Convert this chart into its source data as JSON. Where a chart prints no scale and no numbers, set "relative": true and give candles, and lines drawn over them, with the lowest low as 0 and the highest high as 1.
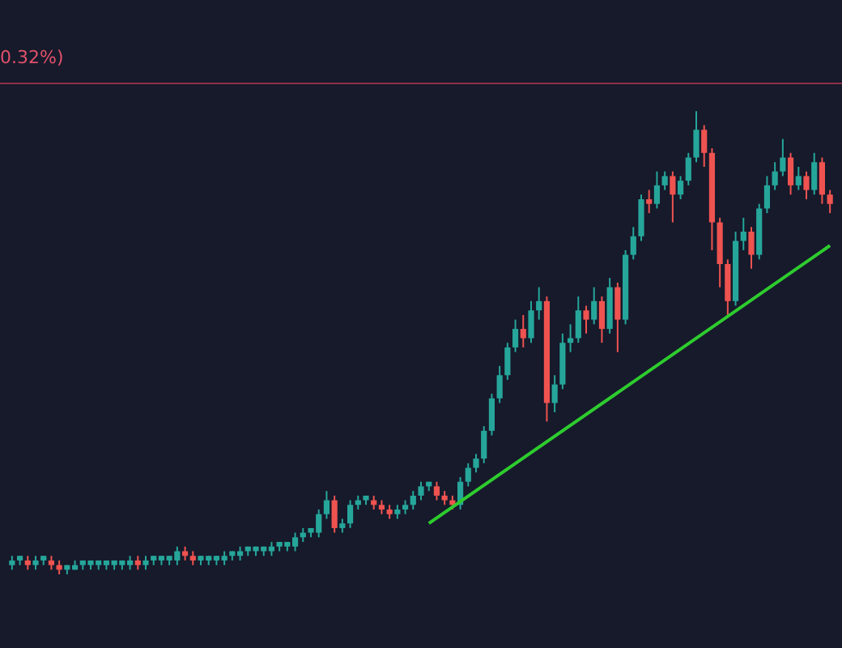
{
  "chart_data": {
    "type": "candlestick",
    "relative": true,
    "categories": [
      null,
      null,
      null,
      null,
      null,
      null,
      null,
      null,
      null,
      null,
      null,
      null,
      null,
      null,
      null,
      null,
      null,
      null,
      null,
      null,
      null,
      null,
      null,
      null,
      null,
      null,
      null,
      null,
      null,
      null,
      null,
      null,
      null,
      null,
      null,
      null,
      null,
      null,
      null,
      null,
      null,
      null,
      null,
      null,
      null,
      null,
      null,
      null,
      null,
      null,
      null,
      null,
      null,
      null,
      null,
      null,
      null,
      null,
      null,
      null,
      null,
      null,
      null,
      null,
      null,
      null,
      null,
      null,
      null,
      null,
      null,
      null,
      null,
      null,
      null,
      null,
      null,
      null,
      null,
      null,
      null,
      null,
      null,
      null,
      null,
      null,
      null,
      null,
      null,
      null,
      null,
      null,
      null,
      null,
      null,
      null,
      null,
      null,
      null,
      null,
      null,
      null,
      null,
      null,
      null
    ],
    "ohlc": [
      [
        0.02,
        0.04,
        0.01,
        0.03
      ],
      [
        0.03,
        0.04,
        0.02,
        0.04
      ],
      [
        0.03,
        0.04,
        0.01,
        0.02
      ],
      [
        0.02,
        0.04,
        0.01,
        0.03
      ],
      [
        0.03,
        0.04,
        0.02,
        0.04
      ],
      [
        0.03,
        0.04,
        0.01,
        0.02
      ],
      [
        0.02,
        0.03,
        0,
        0.01
      ],
      [
        0.01,
        0.02,
        0,
        0.02
      ],
      [
        0.01,
        0.03,
        0.01,
        0.02
      ],
      [
        0.02,
        0.03,
        0.01,
        0.03
      ],
      [
        0.02,
        0.03,
        0.01,
        0.03
      ],
      [
        0.02,
        0.03,
        0.01,
        0.03
      ],
      [
        0.02,
        0.03,
        0.01,
        0.03
      ],
      [
        0.02,
        0.03,
        0.01,
        0.03
      ],
      [
        0.02,
        0.03,
        0.01,
        0.03
      ],
      [
        0.02,
        0.04,
        0.01,
        0.03
      ],
      [
        0.03,
        0.04,
        0.01,
        0.02
      ],
      [
        0.02,
        0.04,
        0.01,
        0.03
      ],
      [
        0.03,
        0.04,
        0.02,
        0.04
      ],
      [
        0.03,
        0.04,
        0.02,
        0.04
      ],
      [
        0.03,
        0.04,
        0.02,
        0.04
      ],
      [
        0.03,
        0.06,
        0.02,
        0.05
      ],
      [
        0.05,
        0.06,
        0.03,
        0.04
      ],
      [
        0.04,
        0.05,
        0.02,
        0.03
      ],
      [
        0.03,
        0.04,
        0.02,
        0.04
      ],
      [
        0.03,
        0.04,
        0.02,
        0.04
      ],
      [
        0.03,
        0.04,
        0.02,
        0.04
      ],
      [
        0.03,
        0.05,
        0.02,
        0.04
      ],
      [
        0.04,
        0.05,
        0.03,
        0.05
      ],
      [
        0.04,
        0.06,
        0.03,
        0.05
      ],
      [
        0.05,
        0.06,
        0.04,
        0.06
      ],
      [
        0.05,
        0.06,
        0.04,
        0.06
      ],
      [
        0.05,
        0.06,
        0.04,
        0.06
      ],
      [
        0.05,
        0.07,
        0.04,
        0.06
      ],
      [
        0.06,
        0.07,
        0.05,
        0.07
      ],
      [
        0.06,
        0.07,
        0.05,
        0.07
      ],
      [
        0.06,
        0.09,
        0.05,
        0.08
      ],
      [
        0.08,
        0.1,
        0.07,
        0.09
      ],
      [
        0.09,
        0.1,
        0.08,
        0.1
      ],
      [
        0.09,
        0.14,
        0.08,
        0.13
      ],
      [
        0.13,
        0.18,
        0.12,
        0.16
      ],
      [
        0.16,
        0.17,
        0.09,
        0.1
      ],
      [
        0.1,
        0.12,
        0.09,
        0.11
      ],
      [
        0.11,
        0.16,
        0.1,
        0.15
      ],
      [
        0.15,
        0.17,
        0.14,
        0.16
      ],
      [
        0.16,
        0.17,
        0.15,
        0.17
      ],
      [
        0.16,
        0.17,
        0.14,
        0.15
      ],
      [
        0.15,
        0.16,
        0.13,
        0.14
      ],
      [
        0.14,
        0.15,
        0.12,
        0.13
      ],
      [
        0.13,
        0.15,
        0.12,
        0.14
      ],
      [
        0.14,
        0.16,
        0.13,
        0.15
      ],
      [
        0.15,
        0.18,
        0.14,
        0.17
      ],
      [
        0.17,
        0.2,
        0.16,
        0.19
      ],
      [
        0.19,
        0.2,
        0.18,
        0.2
      ],
      [
        0.19,
        0.2,
        0.16,
        0.17
      ],
      [
        0.17,
        0.18,
        0.15,
        0.16
      ],
      [
        0.16,
        0.17,
        0.14,
        0.15
      ],
      [
        0.15,
        0.21,
        0.14,
        0.2
      ],
      [
        0.2,
        0.24,
        0.19,
        0.23
      ],
      [
        0.23,
        0.26,
        0.22,
        0.25
      ],
      [
        0.25,
        0.32,
        0.24,
        0.31
      ],
      [
        0.31,
        0.39,
        0.3,
        0.38
      ],
      [
        0.38,
        0.45,
        0.37,
        0.43
      ],
      [
        0.43,
        0.5,
        0.42,
        0.49
      ],
      [
        0.49,
        0.55,
        0.48,
        0.53
      ],
      [
        0.53,
        0.56,
        0.49,
        0.51
      ],
      [
        0.51,
        0.59,
        0.5,
        0.57
      ],
      [
        0.57,
        0.62,
        0.55,
        0.59
      ],
      [
        0.59,
        0.6,
        0.33,
        0.37
      ],
      [
        0.37,
        0.43,
        0.35,
        0.41
      ],
      [
        0.41,
        0.52,
        0.4,
        0.5
      ],
      [
        0.5,
        0.54,
        0.48,
        0.51
      ],
      [
        0.51,
        0.6,
        0.5,
        0.57
      ],
      [
        0.57,
        0.58,
        0.52,
        0.55
      ],
      [
        0.55,
        0.62,
        0.54,
        0.59
      ],
      [
        0.59,
        0.6,
        0.5,
        0.53
      ],
      [
        0.53,
        0.64,
        0.52,
        0.62
      ],
      [
        0.62,
        0.63,
        0.48,
        0.55
      ],
      [
        0.55,
        0.7,
        0.54,
        0.69
      ],
      [
        0.69,
        0.75,
        0.68,
        0.73
      ],
      [
        0.73,
        0.82,
        0.72,
        0.81
      ],
      [
        0.81,
        0.83,
        0.78,
        0.8
      ],
      [
        0.8,
        0.87,
        0.79,
        0.84
      ],
      [
        0.84,
        0.87,
        0.83,
        0.86
      ],
      [
        0.86,
        0.87,
        0.76,
        0.82
      ],
      [
        0.82,
        0.86,
        0.81,
        0.85
      ],
      [
        0.85,
        0.91,
        0.84,
        0.9
      ],
      [
        0.9,
        1.0,
        0.89,
        0.96
      ],
      [
        0.96,
        0.97,
        0.88,
        0.91
      ],
      [
        0.91,
        0.92,
        0.7,
        0.76
      ],
      [
        0.76,
        0.77,
        0.62,
        0.67
      ],
      [
        0.67,
        0.68,
        0.56,
        0.59
      ],
      [
        0.59,
        0.74,
        0.58,
        0.72
      ],
      [
        0.72,
        0.77,
        0.7,
        0.74
      ],
      [
        0.74,
        0.75,
        0.66,
        0.69
      ],
      [
        0.69,
        0.8,
        0.68,
        0.79
      ],
      [
        0.79,
        0.86,
        0.78,
        0.84
      ],
      [
        0.84,
        0.89,
        0.83,
        0.87
      ],
      [
        0.87,
        0.94,
        0.86,
        0.9
      ],
      [
        0.9,
        0.91,
        0.82,
        0.84
      ],
      [
        0.84,
        0.88,
        0.83,
        0.86
      ],
      [
        0.86,
        0.87,
        0.81,
        0.83
      ],
      [
        0.83,
        0.91,
        0.82,
        0.89
      ],
      [
        0.89,
        0.9,
        0.8,
        0.82
      ],
      [
        0.82,
        0.83,
        0.78,
        0.8
      ]
    ],
    "colors": [
      "#26a69a",
      "#26a69a",
      "#ef5350",
      "#26a69a",
      "#26a69a",
      "#ef5350",
      "#ef5350",
      "#26a69a",
      "#26a69a",
      "#26a69a",
      "#26a69a",
      "#26a69a",
      "#26a69a",
      "#26a69a",
      "#26a69a",
      "#26a69a",
      "#ef5350",
      "#26a69a",
      "#26a69a",
      "#26a69a",
      "#26a69a",
      "#26a69a",
      "#ef5350",
      "#ef5350",
      "#26a69a",
      "#26a69a",
      "#26a69a",
      "#26a69a",
      "#26a69a",
      "#26a69a",
      "#26a69a",
      "#26a69a",
      "#26a69a",
      "#26a69a",
      "#26a69a",
      "#26a69a",
      "#26a69a",
      "#26a69a",
      "#26a69a",
      "#26a69a",
      "#26a69a",
      "#ef5350",
      "#26a69a",
      "#26a69a",
      "#26a69a",
      "#26a69a",
      "#ef5350",
      "#ef5350",
      "#ef5350",
      "#26a69a",
      "#26a69a",
      "#26a69a",
      "#26a69a",
      "#26a69a",
      "#ef5350",
      "#ef5350",
      "#ef5350",
      "#26a69a",
      "#26a69a",
      "#26a69a",
      "#26a69a",
      "#26a69a",
      "#26a69a",
      "#26a69a",
      "#26a69a",
      "#ef5350",
      "#26a69a",
      "#26a69a",
      "#ef5350",
      "#26a69a",
      "#26a69a",
      "#26a69a",
      "#26a69a",
      "#ef5350",
      "#26a69a",
      "#ef5350",
      "#26a69a",
      "#ef5350",
      "#26a69a",
      "#26a69a",
      "#26a69a",
      "#ef5350",
      "#26a69a",
      "#26a69a",
      "#ef5350",
      "#26a69a",
      "#26a69a",
      "#26a69a",
      "#ef5350",
      "#ef5350",
      "#ef5350",
      "#ef5350",
      "#26a69a",
      "#26a69a",
      "#ef5350",
      "#26a69a",
      "#26a69a",
      "#26a69a",
      "#26a69a",
      "#ef5350",
      "#26a69a",
      "#ef5350",
      "#26a69a",
      "#ef5350",
      "#ef5350"
    ],
    "series": [
      {
        "type": "line",
        "color": "#2ecc2e",
        "values": [
          null,
          null,
          null,
          null,
          null,
          null,
          null,
          null,
          null,
          null,
          null,
          null,
          null,
          null,
          null,
          null,
          null,
          null,
          null,
          null,
          null,
          null,
          null,
          null,
          null,
          null,
          null,
          null,
          null,
          null,
          null,
          null,
          null,
          null,
          null,
          null,
          null,
          null,
          null,
          null,
          null,
          null,
          null,
          null,
          null,
          null,
          null,
          null,
          null,
          null,
          null,
          null,
          null,
          0.11,
          null,
          null,
          null,
          null,
          null,
          null,
          null,
          null,
          null,
          null,
          null,
          null,
          null,
          null,
          null,
          null,
          null,
          null,
          null,
          null,
          null,
          null,
          null,
          null,
          null,
          null,
          null,
          null,
          null,
          null,
          null,
          null,
          null,
          null,
          null,
          null,
          null,
          null,
          null,
          null,
          null,
          null,
          null,
          null,
          null,
          null,
          null,
          null,
          null,
          null,
          0.71
        ]
      }
    ],
    "ref_lines": [
      {
        "axis": "y",
        "value": 1.06,
        "color": "#8e2f45"
      }
    ],
    "annotations": [
      "0.32%)"
    ]
  }
}
